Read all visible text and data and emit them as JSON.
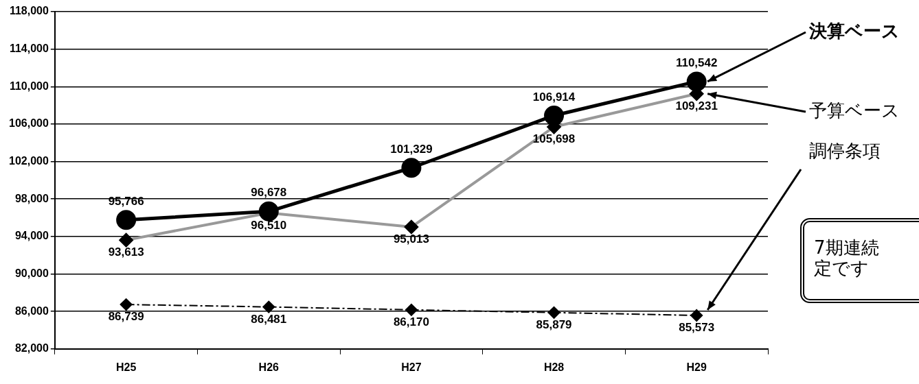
{
  "chart_data": {
    "type": "line",
    "categories": [
      "H25",
      "H26",
      "H27",
      "H28",
      "H29"
    ],
    "series": [
      {
        "name": "決算ベース",
        "color": "#000000",
        "marker": "circle",
        "values": [
          95766,
          96678,
          101329,
          106914,
          110542
        ],
        "value_labels": [
          "95,766",
          "96,678",
          "101,329",
          "106,914",
          "110,542"
        ]
      },
      {
        "name": "予算ベース",
        "color": "#999999",
        "marker": "diamond",
        "values": [
          93613,
          96510,
          95013,
          105698,
          109231
        ],
        "value_labels": [
          "93,613",
          "96,510",
          "95,013",
          "105,698",
          "109,231"
        ]
      },
      {
        "name": "調停条項",
        "color": "#000000",
        "marker": "diamond",
        "line_style": "dashed",
        "values": [
          86739,
          86481,
          86170,
          85879,
          85573
        ],
        "value_labels": [
          "86,739",
          "86,481",
          "86,170",
          "85,879",
          "85,573"
        ]
      }
    ],
    "ylim": [
      82000,
      118000
    ],
    "yticks": [
      {
        "value": 82000,
        "label": "82,000"
      },
      {
        "value": 86000,
        "label": "86,000"
      },
      {
        "value": 90000,
        "label": "90,000"
      },
      {
        "value": 94000,
        "label": "94,000"
      },
      {
        "value": 98000,
        "label": "98,000"
      },
      {
        "value": 102000,
        "label": "102,000"
      },
      {
        "value": 106000,
        "label": "106,000"
      },
      {
        "value": 110000,
        "label": "110,000"
      },
      {
        "value": 114000,
        "label": "114,000"
      },
      {
        "value": 118000,
        "label": "118,000"
      }
    ],
    "grid": "y",
    "legend": false,
    "annotations": [
      "7期連続",
      "定です"
    ]
  }
}
